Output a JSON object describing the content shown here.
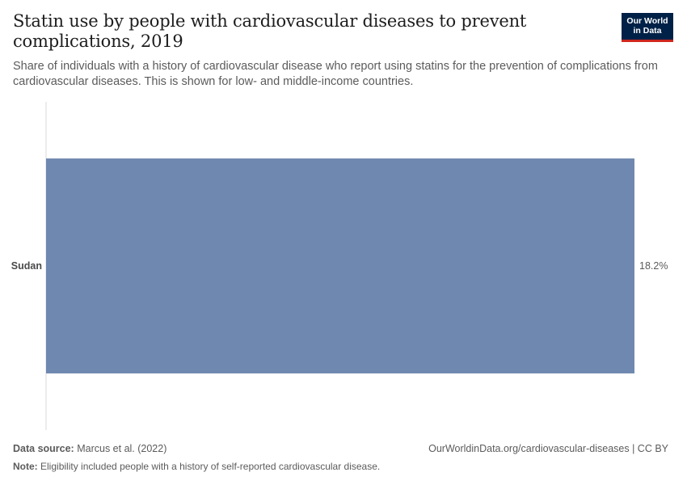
{
  "header": {
    "title": "Statin use by people with cardiovascular diseases to prevent complications, 2019",
    "subtitle": "Share of individuals with a history of cardiovascular disease who report using statins for the prevention of complications from cardiovascular diseases. This is shown for low- and middle-income countries.",
    "logo_line1": "Our World",
    "logo_line2": "in Data"
  },
  "chart_data": {
    "type": "bar",
    "orientation": "horizontal",
    "categories": [
      "Sudan"
    ],
    "values": [
      18.2
    ],
    "value_labels": [
      "18.2%"
    ],
    "unit": "%",
    "xlim": [
      0,
      18.2
    ],
    "grid": false,
    "bar_color": "#6f88b0"
  },
  "footer": {
    "source_label": "Data source:",
    "source_text": "Marcus et al. (2022)",
    "url_text": "OurWorldinData.org/cardiovascular-diseases | CC BY",
    "note_label": "Note:",
    "note_text": "Eligibility included people with a history of self-reported cardiovascular disease."
  }
}
